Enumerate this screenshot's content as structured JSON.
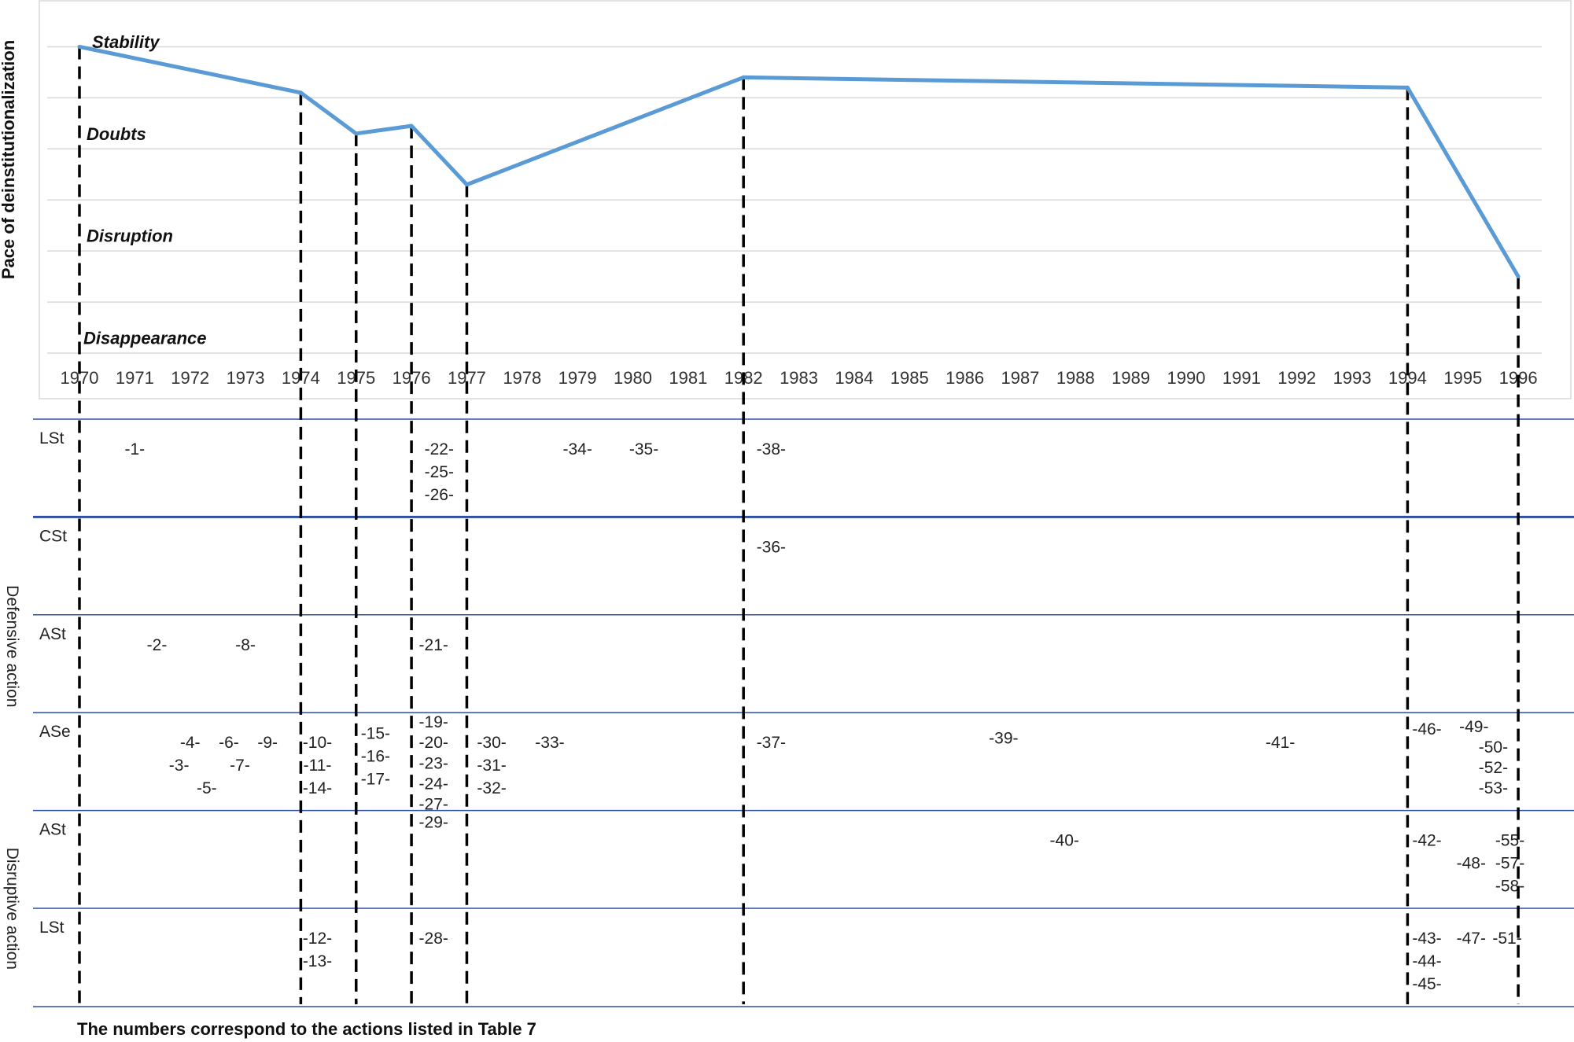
{
  "chart_data": {
    "type": "line",
    "ylabel": "Pace of deinstitutionalization",
    "xlabel": "",
    "x": [
      "1970",
      "1971",
      "1972",
      "1973",
      "1974",
      "1975",
      "1976",
      "1977",
      "1978",
      "1979",
      "1980",
      "1981",
      "1982",
      "1983",
      "1984",
      "1985",
      "1986",
      "1987",
      "1988",
      "1989",
      "1990",
      "1991",
      "1992",
      "1993",
      "1994",
      "1995",
      "1996"
    ],
    "ylim": [
      0,
      6.5
    ],
    "grid": true,
    "levels": [
      {
        "label": "Stability",
        "y": 6.1
      },
      {
        "label": "Doubts",
        "y": 4.3
      },
      {
        "label": "Disruption",
        "y": 2.3
      },
      {
        "label": "Disappearance",
        "y": 0.3
      }
    ],
    "series": [
      {
        "points": [
          {
            "x": "1970",
            "y": 6.0
          },
          {
            "x": "1974",
            "y": 5.1
          },
          {
            "x": "1975",
            "y": 4.3
          },
          {
            "x": "1976",
            "y": 4.45
          },
          {
            "x": "1977",
            "y": 3.3
          },
          {
            "x": "1982",
            "y": 5.4
          },
          {
            "x": "1994",
            "y": 5.2
          },
          {
            "x": "1996",
            "y": 1.5
          }
        ]
      }
    ],
    "color": "#5b9bd5",
    "markers": [
      "1970",
      "1974",
      "1975",
      "1976",
      "1977",
      "1982",
      "1994",
      "1996"
    ]
  },
  "table": {
    "group_labels": [
      {
        "text": "Defensive action",
        "rows": [
          0,
          3
        ]
      },
      {
        "text": "Disruptive action",
        "rows": [
          4,
          5
        ]
      }
    ],
    "rows": [
      {
        "label": "LSt",
        "items": [
          {
            "text": "-1-",
            "x": 1971,
            "l": 0
          },
          {
            "text": "-22-",
            "x": 1976.5,
            "l": 0
          },
          {
            "text": "-25-",
            "x": 1976.5,
            "l": 1
          },
          {
            "text": "-26-",
            "x": 1976.5,
            "l": 2
          },
          {
            "text": "-34-",
            "x": 1979,
            "l": 0
          },
          {
            "text": "-35-",
            "x": 1980.2,
            "l": 0
          },
          {
            "text": "-38-",
            "x": 1982.5,
            "l": 0
          }
        ]
      },
      {
        "label": "CSt",
        "items": [
          {
            "text": "-36-",
            "x": 1982.5,
            "l": 0
          }
        ]
      },
      {
        "label": "ASt",
        "items": [
          {
            "text": "-2-",
            "x": 1971.4,
            "l": 0
          },
          {
            "text": "-8-",
            "x": 1973,
            "l": 0
          },
          {
            "text": "-21-",
            "x": 1976.4,
            "l": 0
          }
        ]
      },
      {
        "label": "ASe",
        "items": [
          {
            "text": "-4-",
            "x": 1972.0,
            "l": 0
          },
          {
            "text": "-6-",
            "x": 1972.7,
            "l": 0
          },
          {
            "text": "-9-",
            "x": 1973.4,
            "l": 0
          },
          {
            "text": "-3-",
            "x": 1971.8,
            "l": 1
          },
          {
            "text": "-7-",
            "x": 1972.9,
            "l": 1
          },
          {
            "text": "-5-",
            "x": 1972.3,
            "l": 2
          },
          {
            "text": "-10-",
            "x": 1974.3,
            "l": 0
          },
          {
            "text": "-11-",
            "x": 1974.3,
            "l": 1
          },
          {
            "text": "-14-",
            "x": 1974.3,
            "l": 2
          },
          {
            "text": "-15-",
            "x": 1975.35,
            "l": -0.4
          },
          {
            "text": "-16-",
            "x": 1975.35,
            "l": 0.6
          },
          {
            "text": "-17-",
            "x": 1975.35,
            "l": 1.6
          },
          {
            "text": "-19-",
            "x": 1976.4,
            "l": -0.9
          },
          {
            "text": "-20-",
            "x": 1976.4,
            "l": 0.0
          },
          {
            "text": "-23-",
            "x": 1976.4,
            "l": 0.9
          },
          {
            "text": "-24-",
            "x": 1976.4,
            "l": 1.8
          },
          {
            "text": "-27-",
            "x": 1976.4,
            "l": 2.7
          },
          {
            "text": "-29-",
            "x": 1976.4,
            "l": 3.5
          },
          {
            "text": "-30-",
            "x": 1977.45,
            "l": 0
          },
          {
            "text": "-31-",
            "x": 1977.45,
            "l": 1
          },
          {
            "text": "-32-",
            "x": 1977.45,
            "l": 2
          },
          {
            "text": "-33-",
            "x": 1978.5,
            "l": 0
          },
          {
            "text": "-37-",
            "x": 1982.5,
            "l": 0
          },
          {
            "text": "-39-",
            "x": 1986.7,
            "l": -0.2
          },
          {
            "text": "-41-",
            "x": 1991.7,
            "l": 0
          },
          {
            "text": "-46-",
            "x": 1994.35,
            "l": -0.6
          },
          {
            "text": "-49-",
            "x": 1995.2,
            "l": -0.7
          },
          {
            "text": "-50-",
            "x": 1995.55,
            "l": 0.2
          },
          {
            "text": "-52-",
            "x": 1995.55,
            "l": 1.1
          },
          {
            "text": "-53-",
            "x": 1995.55,
            "l": 2.0
          }
        ]
      },
      {
        "label": "ASt",
        "items": [
          {
            "text": "-40-",
            "x": 1987.8,
            "l": 0
          },
          {
            "text": "-42-",
            "x": 1994.35,
            "l": 0
          },
          {
            "text": "-48-",
            "x": 1995.15,
            "l": 1
          },
          {
            "text": "-55-",
            "x": 1995.85,
            "l": 0
          },
          {
            "text": "-57-",
            "x": 1995.85,
            "l": 1
          },
          {
            "text": "-58-",
            "x": 1995.85,
            "l": 2
          }
        ]
      },
      {
        "label": "LSt",
        "items": [
          {
            "text": "-12-",
            "x": 1974.3,
            "l": 0
          },
          {
            "text": "-13-",
            "x": 1974.3,
            "l": 1
          },
          {
            "text": "-28-",
            "x": 1976.4,
            "l": 0
          },
          {
            "text": "-43-",
            "x": 1994.35,
            "l": 0
          },
          {
            "text": "-44-",
            "x": 1994.35,
            "l": 1
          },
          {
            "text": "-45-",
            "x": 1994.35,
            "l": 2
          },
          {
            "text": "-47-",
            "x": 1995.15,
            "l": 0
          },
          {
            "text": "-51-",
            "x": 1995.8,
            "l": 0
          }
        ]
      }
    ]
  },
  "footnote": "The numbers correspond to the actions listed in Table 7"
}
